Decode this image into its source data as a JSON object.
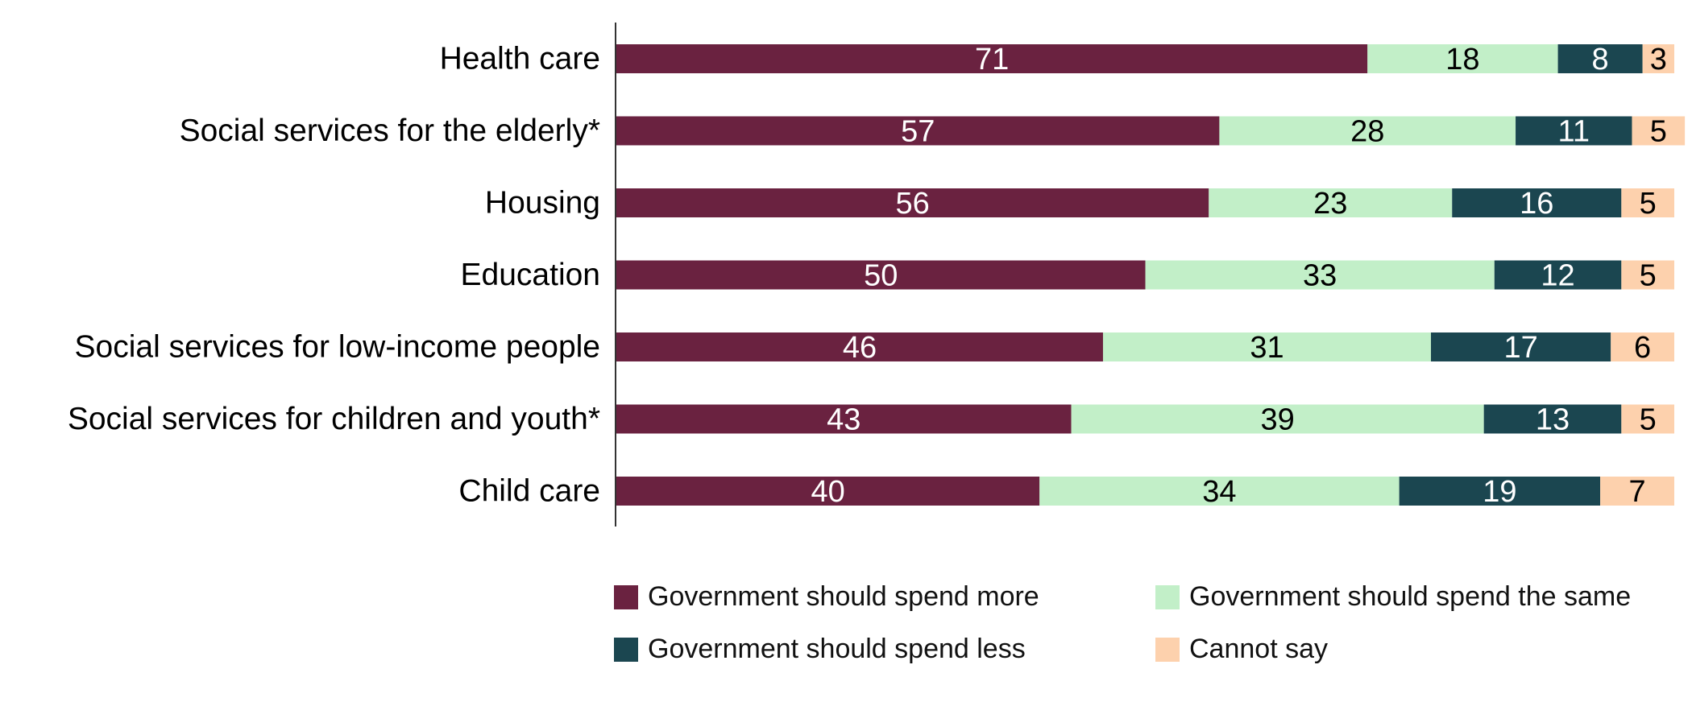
{
  "chart_data": {
    "type": "bar",
    "orientation": "horizontal",
    "stacked": true,
    "categories": [
      "Health care",
      "Social services for the elderly*",
      "Housing",
      "Education",
      "Social services for low-income people",
      "Social services for children and youth*",
      "Child care"
    ],
    "series": [
      {
        "name": "Government should spend more",
        "color": "#6a2240",
        "label_color": "#ffffff",
        "values": [
          71,
          57,
          56,
          50,
          46,
          43,
          40
        ]
      },
      {
        "name": "Government should spend the same",
        "color": "#c2efc8",
        "label_color": "#000000",
        "values": [
          18,
          28,
          23,
          33,
          31,
          39,
          34
        ]
      },
      {
        "name": "Government should spend less",
        "color": "#1b4650",
        "label_color": "#ffffff",
        "values": [
          8,
          11,
          16,
          12,
          17,
          13,
          19
        ]
      },
      {
        "name": "Cannot say",
        "color": "#fdd1ad",
        "label_color": "#000000",
        "values": [
          3,
          5,
          5,
          5,
          6,
          5,
          7
        ]
      }
    ],
    "xlim": [
      0,
      100
    ],
    "grid": false,
    "legend_position": "bottom"
  }
}
